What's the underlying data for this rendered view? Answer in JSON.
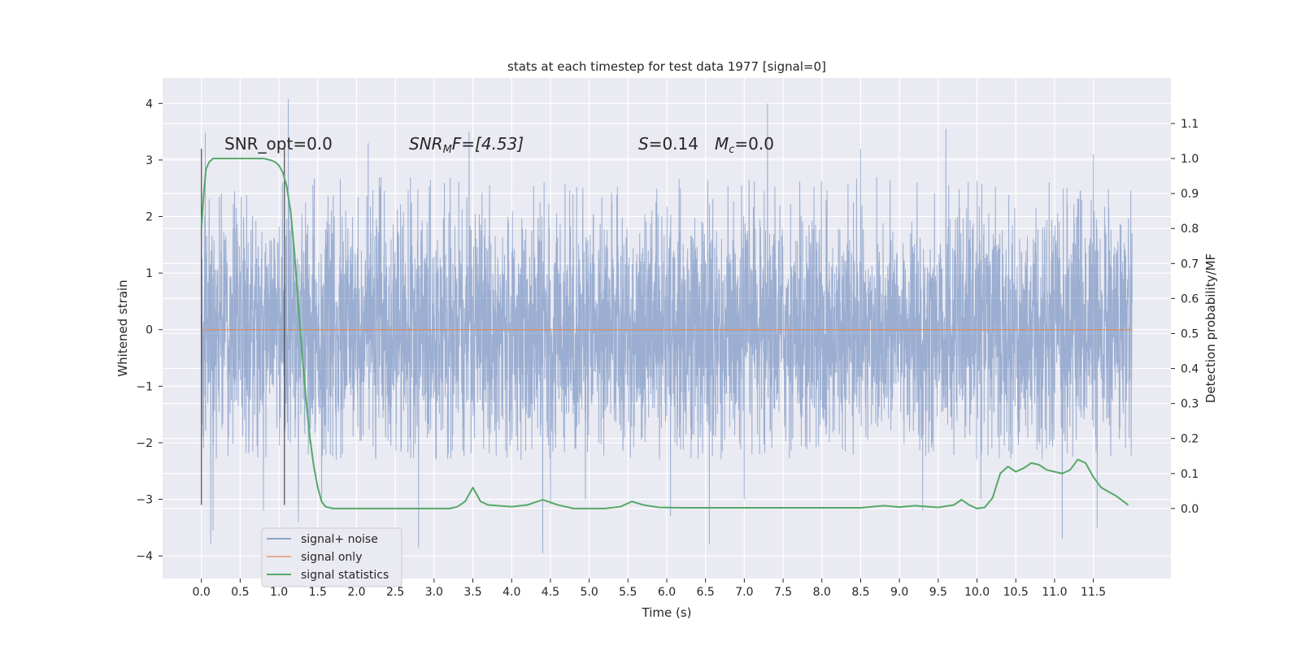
{
  "chart_data": {
    "type": "line",
    "title": "stats at each timestep for test data 1977 [signal=0]",
    "xlabel": "Time (s)",
    "ylabel": "Whitened strain",
    "ylabel_right": "Detection probability/MF",
    "xlim": [
      -0.5,
      12.5
    ],
    "ylim": [
      -4.4,
      4.45
    ],
    "ylim_right": [
      -0.2,
      1.23
    ],
    "x_ticks": [
      0.0,
      0.5,
      1.0,
      1.5,
      2.0,
      2.5,
      3.0,
      3.5,
      4.0,
      4.5,
      5.0,
      5.5,
      6.0,
      6.5,
      7.0,
      7.5,
      8.0,
      8.5,
      9.0,
      9.5,
      10.0,
      10.5,
      11.0,
      11.5
    ],
    "x_tick_labels": [
      "0.0",
      "0.5",
      "1.0",
      "1.5",
      "2.0",
      "2.5",
      "3.0",
      "3.5",
      "4.0",
      "4.5",
      "5.0",
      "5.5",
      "6.0",
      "6.5",
      "7.0",
      "7.5",
      "8.0",
      "8.5",
      "9.0",
      "9.5",
      "10.0",
      "10.5",
      "11.0",
      "11.5"
    ],
    "y_ticks": [
      -4,
      -3,
      -2,
      -1,
      0,
      1,
      2,
      3,
      4
    ],
    "y_tick_labels": [
      "−4",
      "−3",
      "−2",
      "−1",
      "0",
      "1",
      "2",
      "3",
      "4"
    ],
    "y_right_ticks": [
      0.0,
      0.1,
      0.2,
      0.3,
      0.4,
      0.5,
      0.6,
      0.7,
      0.8,
      0.9,
      1.0,
      1.1
    ],
    "y_right_tick_labels": [
      "0.0",
      "0.1",
      "0.2",
      "0.3",
      "0.4",
      "0.5",
      "0.6",
      "0.7",
      "0.8",
      "0.9",
      "1.0",
      "1.1"
    ],
    "grid": true,
    "legend_position": "lower-left",
    "annotations": {
      "snr_opt": "SNR_opt=0.0",
      "snr_mf_a": "SNR",
      "snr_mf_b": "M",
      "snr_mf_c": "F=[4.53]",
      "s_a": "S",
      "s_b": "=0.14",
      "mc_a": "M",
      "mc_b": "c",
      "mc_c": "=0.0"
    },
    "vlines": {
      "x": [
        0.0,
        1.07
      ],
      "ymin": -3.1,
      "ymax": 3.2
    },
    "series": [
      {
        "name": "signal+ noise",
        "color": "#4c72b0",
        "axis": "left",
        "x_range": [
          0.0,
          12.0
        ],
        "sample_count": 4800,
        "envelope_upper": 2.7,
        "envelope_lower": -2.3,
        "peaks": [
          {
            "x": 0.05,
            "y": 3.48
          },
          {
            "x": 0.12,
            "y": -3.8
          },
          {
            "x": 0.15,
            "y": -3.55
          },
          {
            "x": 0.8,
            "y": -3.2
          },
          {
            "x": 1.12,
            "y": 4.08
          },
          {
            "x": 1.25,
            "y": -3.4
          },
          {
            "x": 1.55,
            "y": -3.0
          },
          {
            "x": 2.15,
            "y": 3.3
          },
          {
            "x": 2.8,
            "y": -3.85
          },
          {
            "x": 3.45,
            "y": 3.5
          },
          {
            "x": 4.4,
            "y": -3.95
          },
          {
            "x": 4.5,
            "y": -3.1
          },
          {
            "x": 4.95,
            "y": -3.0
          },
          {
            "x": 6.05,
            "y": -3.3
          },
          {
            "x": 6.55,
            "y": -3.8
          },
          {
            "x": 7.3,
            "y": 4.0
          },
          {
            "x": 7.0,
            "y": -3.0
          },
          {
            "x": 8.5,
            "y": 3.2
          },
          {
            "x": 9.6,
            "y": 3.55
          },
          {
            "x": 9.3,
            "y": -3.2
          },
          {
            "x": 10.05,
            "y": -3.0
          },
          {
            "x": 11.1,
            "y": -3.7
          },
          {
            "x": 11.5,
            "y": 3.1
          },
          {
            "x": 11.55,
            "y": -3.5
          }
        ]
      },
      {
        "name": "signal only",
        "color": "#dd8452",
        "axis": "left",
        "x": [
          0.0,
          12.0
        ],
        "y": [
          0.0,
          0.0
        ]
      },
      {
        "name": "signal statistics",
        "color": "#55a868",
        "axis": "right",
        "x": [
          0.0,
          0.03,
          0.06,
          0.1,
          0.15,
          0.25,
          0.4,
          0.6,
          0.8,
          0.9,
          0.95,
          1.0,
          1.05,
          1.1,
          1.15,
          1.2,
          1.25,
          1.3,
          1.35,
          1.4,
          1.45,
          1.5,
          1.55,
          1.6,
          1.7,
          2.0,
          2.5,
          3.0,
          3.2,
          3.3,
          3.4,
          3.5,
          3.6,
          3.7,
          4.0,
          4.2,
          4.4,
          4.6,
          4.8,
          5.2,
          5.4,
          5.55,
          5.7,
          5.9,
          6.2,
          7.0,
          8.0,
          8.5,
          8.8,
          9.0,
          9.2,
          9.5,
          9.7,
          9.8,
          9.9,
          10.0,
          10.1,
          10.2,
          10.3,
          10.4,
          10.5,
          10.6,
          10.7,
          10.8,
          10.9,
          11.0,
          11.1,
          11.2,
          11.3,
          11.4,
          11.5,
          11.6,
          11.8,
          11.95
        ],
        "y": [
          0.8,
          0.9,
          0.97,
          0.99,
          1.0,
          1.0,
          1.0,
          1.0,
          1.0,
          0.995,
          0.99,
          0.98,
          0.96,
          0.92,
          0.85,
          0.73,
          0.58,
          0.44,
          0.31,
          0.2,
          0.12,
          0.06,
          0.02,
          0.005,
          0.0,
          0.0,
          0.0,
          0.0,
          0.0,
          0.005,
          0.02,
          0.06,
          0.02,
          0.01,
          0.005,
          0.01,
          0.025,
          0.01,
          0.0,
          0.0,
          0.005,
          0.02,
          0.01,
          0.003,
          0.002,
          0.002,
          0.002,
          0.002,
          0.008,
          0.004,
          0.008,
          0.003,
          0.01,
          0.025,
          0.01,
          0.0,
          0.003,
          0.03,
          0.1,
          0.12,
          0.105,
          0.115,
          0.13,
          0.125,
          0.11,
          0.105,
          0.1,
          0.11,
          0.14,
          0.13,
          0.09,
          0.06,
          0.035,
          0.01
        ]
      }
    ]
  }
}
